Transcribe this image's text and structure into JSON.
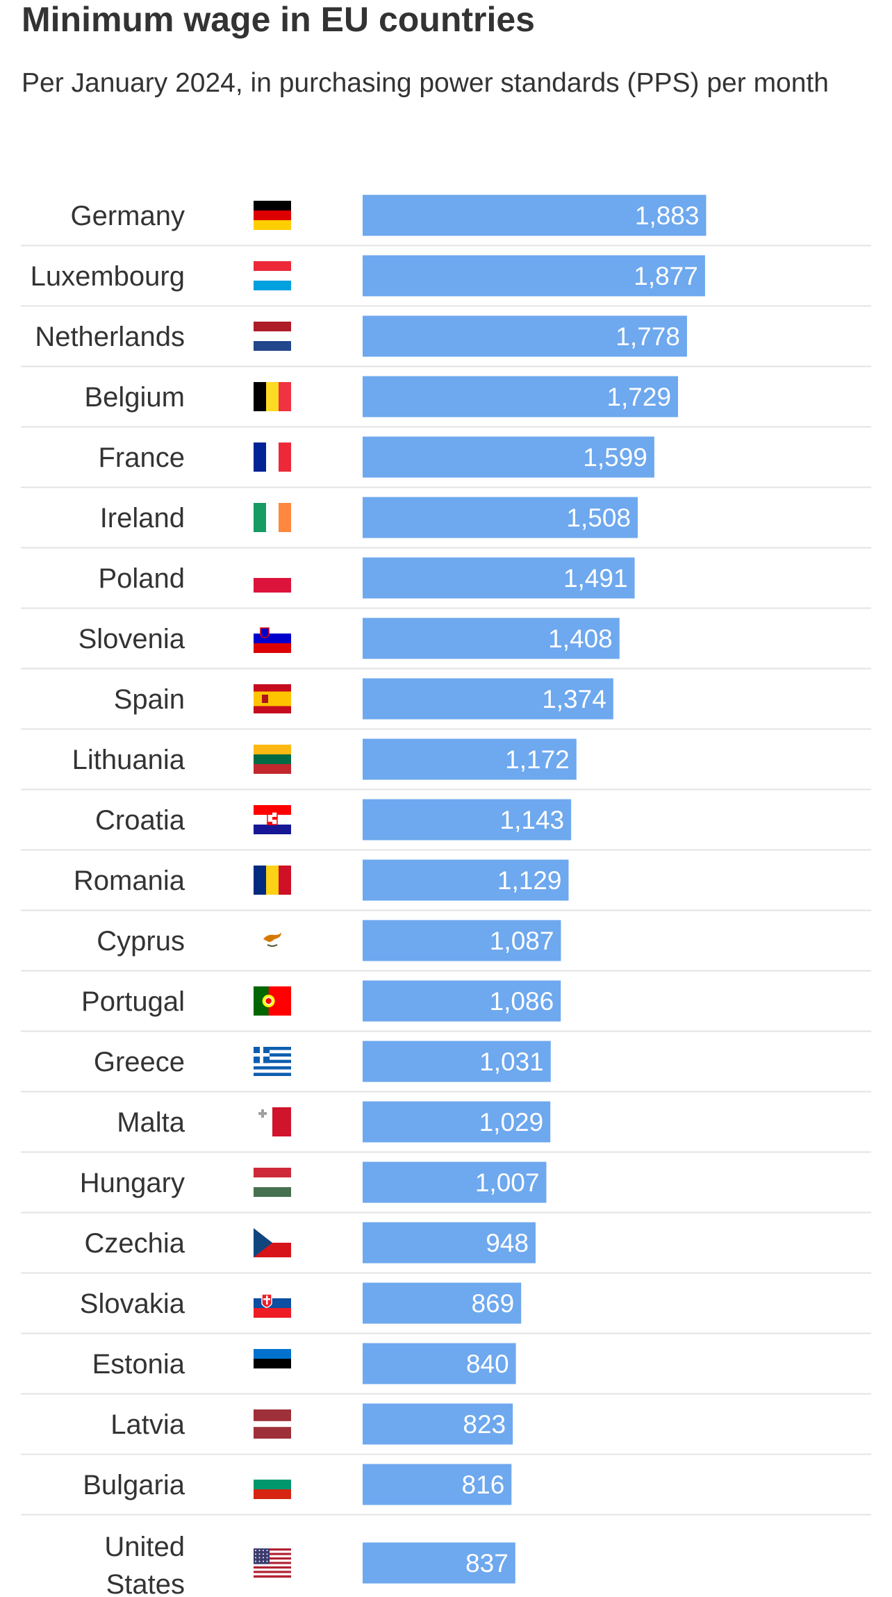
{
  "chart_data": {
    "type": "bar",
    "orientation": "horizontal",
    "title": "Minimum wage in EU countries",
    "subtitle": "Per January 2024, in purchasing power standards (PPS) per month",
    "categories": [
      "Germany",
      "Luxembourg",
      "Netherlands",
      "Belgium",
      "France",
      "Ireland",
      "Poland",
      "Slovenia",
      "Spain",
      "Lithuania",
      "Croatia",
      "Romania",
      "Cyprus",
      "Portugal",
      "Greece",
      "Malta",
      "Hungary",
      "Czechia",
      "Slovakia",
      "Estonia",
      "Latvia",
      "Bulgaria",
      "United States"
    ],
    "values": [
      1883,
      1877,
      1778,
      1729,
      1599,
      1508,
      1491,
      1408,
      1374,
      1172,
      1143,
      1129,
      1087,
      1086,
      1031,
      1029,
      1007,
      948,
      869,
      840,
      823,
      816,
      837
    ],
    "value_labels": [
      "1,883",
      "1,877",
      "1,778",
      "1,729",
      "1,599",
      "1,508",
      "1,491",
      "1,408",
      "1,374",
      "1,172",
      "1,143",
      "1,129",
      "1,087",
      "1,086",
      "1,031",
      "1,029",
      "1,007",
      "948",
      "869",
      "840",
      "823",
      "816",
      "837"
    ],
    "flags": [
      "flag-germany-icon",
      "flag-luxembourg-icon",
      "flag-netherlands-icon",
      "flag-belgium-icon",
      "flag-france-icon",
      "flag-ireland-icon",
      "flag-poland-icon",
      "flag-slovenia-icon",
      "flag-spain-icon",
      "flag-lithuania-icon",
      "flag-croatia-icon",
      "flag-romania-icon",
      "flag-cyprus-icon",
      "flag-portugal-icon",
      "flag-greece-icon",
      "flag-malta-icon",
      "flag-hungary-icon",
      "flag-czechia-icon",
      "flag-slovakia-icon",
      "flag-estonia-icon",
      "flag-latvia-icon",
      "flag-bulgaria-icon",
      "flag-united-states-icon"
    ],
    "xlim": [
      0,
      3000
    ],
    "bar_color": "#6ea8ee",
    "grid": false,
    "legend": "none"
  }
}
